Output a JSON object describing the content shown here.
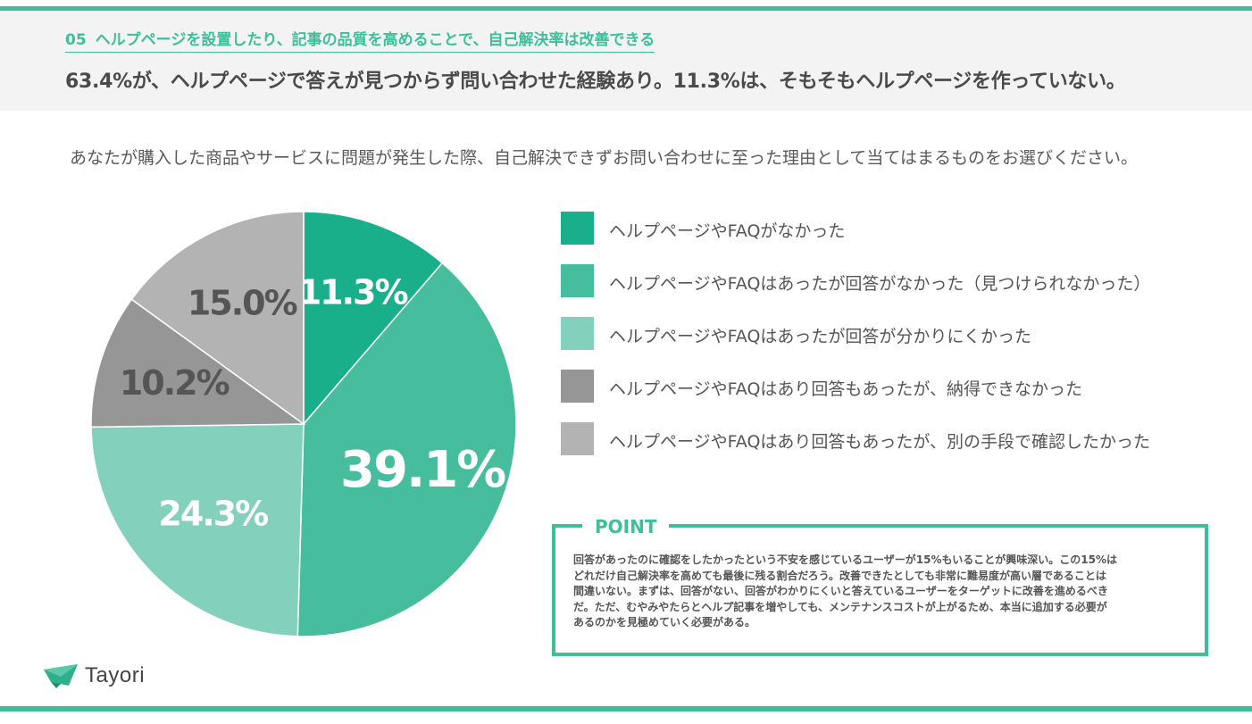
{
  "section": {
    "number": "05",
    "title": "ヘルプページを設置したり、記事の品質を高めることで、自己解決率は改善できる"
  },
  "headline": "63.4%が、ヘルプページで答えが見つからず問い合わせた経験あり。11.3%は、そもそもヘルプページを作っていない。",
  "question": "あなたが購入した商品やサービスに問題が発生した際、自己解決できずお問い合わせに至った理由として当てはまるものをお選びください。",
  "chart_data": {
    "type": "pie",
    "title": "",
    "categories": [
      "ヘルプページやFAQがなかった",
      "ヘルプページやFAQはあったが回答がなかった（見つけられなかった）",
      "ヘルプページやFAQはあったが回答が分かりにくかった",
      "ヘルプページやFAQはあり回答もあったが、納得できなかった",
      "ヘルプページやFAQはあり回答もあったが、別の手段で確認したかった"
    ],
    "values": [
      11.3,
      39.1,
      24.3,
      10.2,
      15.0
    ],
    "value_labels": [
      "11.3%",
      "39.1%",
      "24.3%",
      "10.2%",
      "15.0%"
    ],
    "colors": [
      "#1aaf8b",
      "#46be9e",
      "#83d1bd",
      "#969696",
      "#b3b3b3"
    ],
    "label_colors": [
      "#ffffff",
      "#ffffff",
      "#ffffff",
      "#555555",
      "#555555"
    ],
    "start": "12 o'clock",
    "direction": "clockwise",
    "legend_position": "right"
  },
  "point": {
    "title": "POINT",
    "lines": [
      "回答があったのに確認をしたかったという不安を感じているユーザーが15%もいることが興味深い。この15%は",
      "どれだけ自己解決率を高めても最後に残る割合だろう。改善できたとしても非常に難易度が高い層であることは",
      "間違いない。まずは、回答がない、回答がわかりにくいと答えているユーザーをターゲットに改善を進めるべき",
      "だ。ただ、むやみやたらとヘルプ記事を増やしても、メンテナンスコストが上がるため、本当に追加する必要が",
      "あるのかを見極めていく必要がある。"
    ]
  },
  "logo": {
    "name": "Tayori",
    "icon": "envelope-logo-icon"
  }
}
